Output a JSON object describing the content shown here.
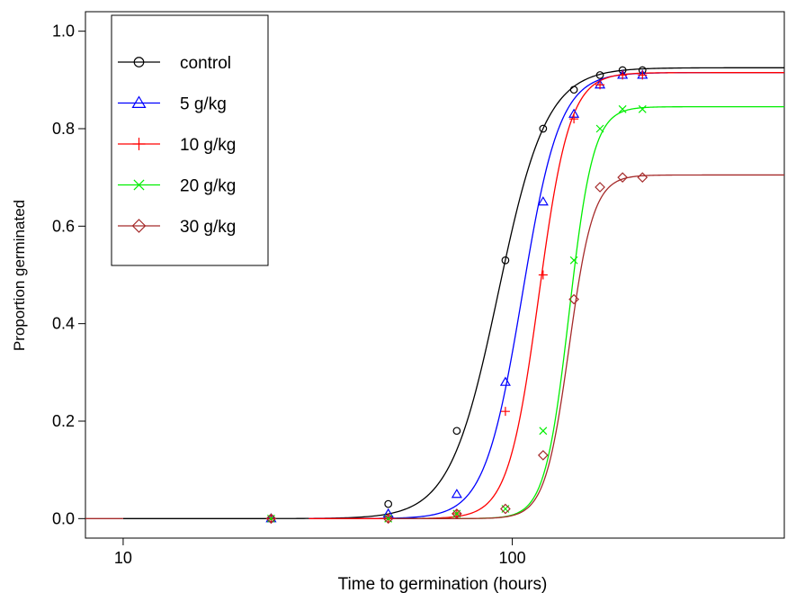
{
  "chart_data": {
    "type": "line",
    "title": "",
    "xlabel": "Time to germination (hours)",
    "ylabel": "Proportion germinated",
    "x_scale": "log",
    "xlim": [
      8,
      500
    ],
    "ylim": [
      -0.04,
      1.04
    ],
    "x_ticks": [
      10,
      100
    ],
    "x_tick_labels": [
      "10",
      "100"
    ],
    "y_ticks": [
      0.0,
      0.2,
      0.4,
      0.6,
      0.8,
      1.0
    ],
    "y_tick_labels": [
      "0.0",
      "0.2",
      "0.4",
      "0.6",
      "0.8",
      "1.0"
    ],
    "grid": false,
    "legend_position": "top-left",
    "series": [
      {
        "name": "control",
        "color": "#000000",
        "marker": "circle",
        "curve": {
          "upper": 0.925,
          "t50": 92,
          "slope": 7.0,
          "start": 10
        },
        "points": {
          "x": [
            24,
            48,
            72,
            96,
            120,
            144,
            168,
            192,
            216
          ],
          "y": [
            0.0,
            0.03,
            0.18,
            0.53,
            0.8,
            0.88,
            0.91,
            0.92,
            0.92
          ]
        }
      },
      {
        "name": "5 g/kg",
        "color": "#0000ff",
        "marker": "triangle",
        "curve": {
          "upper": 0.915,
          "t50": 106,
          "slope": 9.0,
          "start": 30
        },
        "points": {
          "x": [
            24,
            48,
            72,
            96,
            120,
            144,
            168,
            192,
            216
          ],
          "y": [
            0.0,
            0.01,
            0.05,
            0.28,
            0.65,
            0.83,
            0.89,
            0.91,
            0.91
          ]
        }
      },
      {
        "name": "10 g/kg",
        "color": "#ff0000",
        "marker": "plus",
        "curve": {
          "upper": 0.915,
          "t50": 117,
          "slope": 11.0,
          "start": 30
        },
        "points": {
          "x": [
            24,
            48,
            72,
            96,
            120,
            144,
            168,
            192,
            216
          ],
          "y": [
            0.0,
            0.0,
            0.01,
            0.22,
            0.5,
            0.82,
            0.89,
            0.91,
            0.91
          ]
        }
      },
      {
        "name": "20 g/kg",
        "color": "#00ee00",
        "marker": "x",
        "curve": {
          "upper": 0.845,
          "t50": 140,
          "slope": 14.0,
          "start": 50
        },
        "points": {
          "x": [
            24,
            48,
            72,
            96,
            120,
            144,
            168,
            192,
            216
          ],
          "y": [
            0.0,
            0.0,
            0.01,
            0.02,
            0.18,
            0.53,
            0.8,
            0.84,
            0.84
          ]
        }
      },
      {
        "name": "30 g/kg",
        "color": "#a52a2a",
        "marker": "diamond",
        "curve": {
          "upper": 0.705,
          "t50": 140,
          "slope": 14.0,
          "start": 50
        },
        "points": {
          "x": [
            24,
            48,
            72,
            96,
            120,
            144,
            168,
            192,
            216
          ],
          "y": [
            0.0,
            0.0,
            0.01,
            0.02,
            0.13,
            0.45,
            0.68,
            0.7,
            0.7
          ]
        }
      }
    ]
  }
}
